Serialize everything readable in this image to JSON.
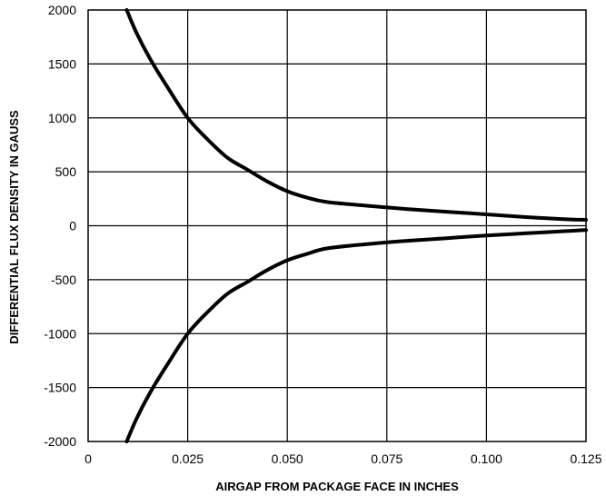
{
  "chart_data": {
    "type": "line",
    "xlabel": "AIRGAP FROM PACKAGE FACE IN INCHES",
    "ylabel": "DIFFERENTIAL FLUX DENSITY IN GAUSS",
    "xlim": [
      0,
      0.125
    ],
    "ylim": [
      -2000,
      2000
    ],
    "x_ticks": [
      "0",
      "0.025",
      "0.050",
      "0.075",
      "0.100",
      "0.125"
    ],
    "y_ticks": [
      "2000",
      "1500",
      "1000",
      "500",
      "0",
      "-500",
      "-1000",
      "-1500",
      "-2000"
    ],
    "grid": true,
    "series": [
      {
        "x": [
          0.0097,
          0.012,
          0.0155,
          0.02,
          0.025,
          0.03,
          0.035,
          0.04,
          0.045,
          0.05,
          0.055,
          0.06,
          0.07,
          0.08,
          0.09,
          0.1,
          0.11,
          0.12,
          0.125
        ],
        "y": [
          2000,
          1800,
          1550,
          1280,
          1000,
          800,
          630,
          520,
          410,
          320,
          260,
          220,
          185,
          155,
          130,
          105,
          80,
          60,
          55
        ]
      },
      {
        "x": [
          0.0097,
          0.012,
          0.0155,
          0.02,
          0.025,
          0.03,
          0.035,
          0.04,
          0.045,
          0.05,
          0.055,
          0.06,
          0.07,
          0.08,
          0.09,
          0.1,
          0.11,
          0.12,
          0.125
        ],
        "y": [
          -2000,
          -1800,
          -1550,
          -1280,
          -1000,
          -800,
          -630,
          -520,
          -410,
          -320,
          -260,
          -210,
          -170,
          -140,
          -115,
          -90,
          -70,
          -50,
          -40
        ]
      }
    ],
    "colors": {
      "line": "#000000",
      "grid": "#000000",
      "background": "#ffffff"
    }
  }
}
